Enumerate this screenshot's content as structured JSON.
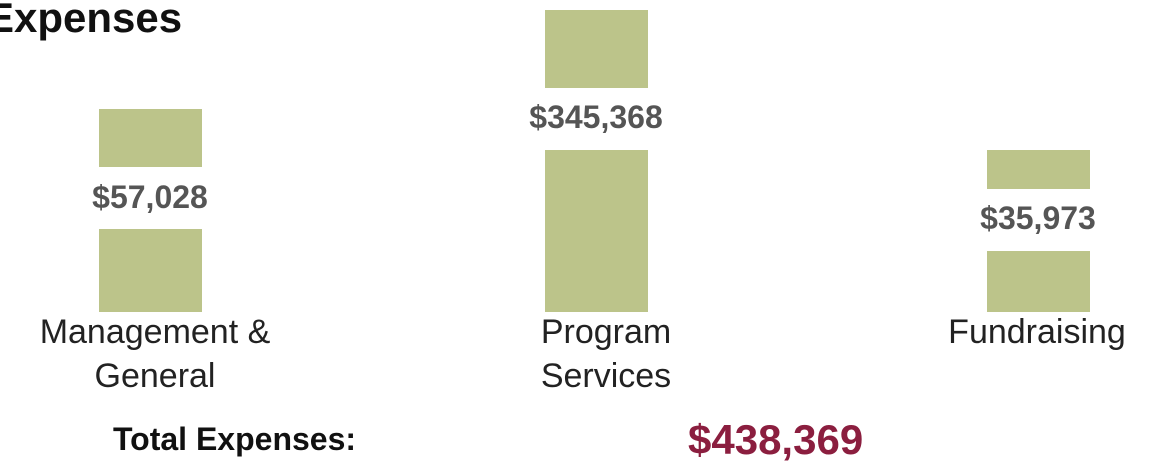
{
  "title": "Expenses",
  "items": [
    {
      "label": "Management & General",
      "amount": "$57,028"
    },
    {
      "label": "Program Services",
      "amount": "$345,368"
    },
    {
      "label": "Fundraising",
      "amount": "$35,973"
    }
  ],
  "total": {
    "label": "Total Expenses:",
    "amount": "$438,369"
  }
}
